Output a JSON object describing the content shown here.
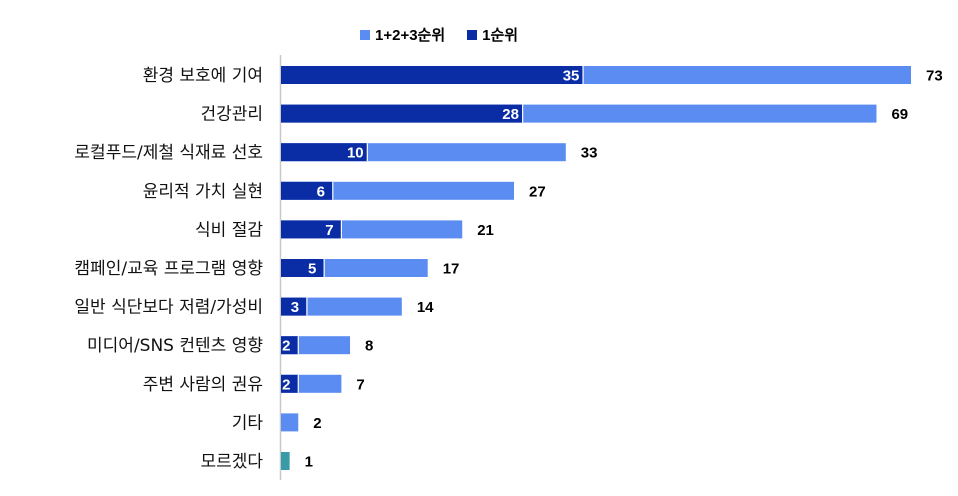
{
  "chart_data": {
    "type": "bar",
    "orientation": "horizontal",
    "stacking": "overlay",
    "categories": [
      "환경 보호에 기여",
      "건강관리",
      "로컬푸드/제철 식재료 선호",
      "윤리적 가치 실현",
      "식비 절감",
      "캠페인/교육 프로그램 영향",
      "일반 식단보다 저렴/가성비",
      "미디어/SNS 컨텐츠 영향",
      "주변 사람의 권유",
      "기타",
      "모르겠다"
    ],
    "series": [
      {
        "name": "1+2+3순위",
        "color": "#5B8CF2",
        "values": [
          73,
          69,
          33,
          27,
          21,
          17,
          14,
          8,
          7,
          2,
          1
        ]
      },
      {
        "name": "1순위",
        "color": "#0A2DA6",
        "values": [
          35,
          28,
          10,
          6,
          7,
          5,
          3,
          2,
          2,
          null,
          null
        ]
      }
    ],
    "special_colors": {
      "모르겠다": "#3A9BA8"
    },
    "xlim": [
      0,
      80
    ],
    "grid": false,
    "legend_position": "top-center"
  }
}
